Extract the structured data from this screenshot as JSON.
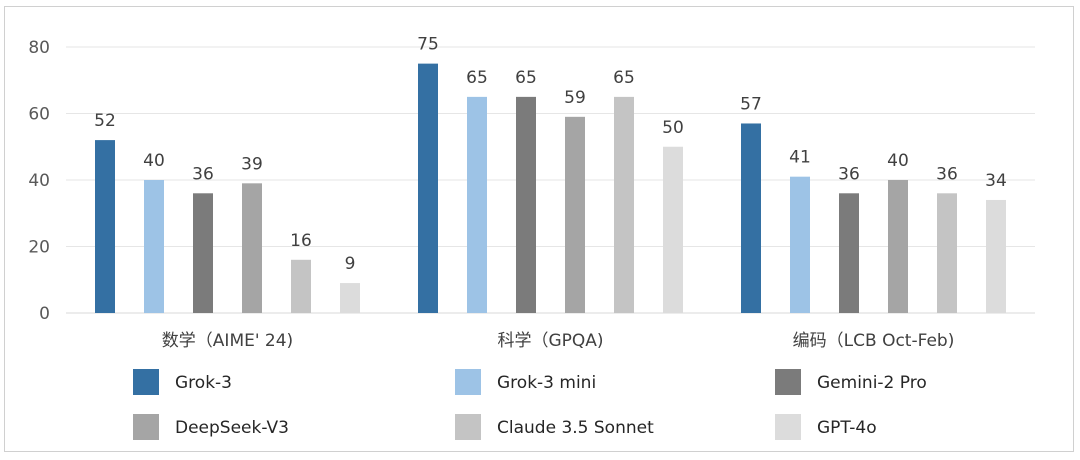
{
  "chart_data": {
    "type": "bar",
    "categories": [
      "数学（AIME' 24)",
      "科学（GPQA)",
      "编码（LCB Oct-Feb)"
    ],
    "series": [
      {
        "name": "Grok-3",
        "color": "#3470a3",
        "values": [
          52,
          75,
          57
        ]
      },
      {
        "name": "Grok-3 mini",
        "color": "#9dc3e6",
        "values": [
          40,
          65,
          41
        ]
      },
      {
        "name": "Gemini-2 Pro",
        "color": "#7b7b7b",
        "values": [
          36,
          65,
          36
        ]
      },
      {
        "name": "DeepSeek-V3",
        "color": "#a5a5a5",
        "values": [
          39,
          59,
          40
        ]
      },
      {
        "name": "Claude 3.5 Sonnet",
        "color": "#c4c4c4",
        "values": [
          16,
          65,
          36
        ]
      },
      {
        "name": "GPT-4o",
        "color": "#dcdcdc",
        "values": [
          9,
          50,
          34
        ]
      }
    ],
    "ylim": [
      0,
      80
    ],
    "yticks": [
      0,
      20,
      40,
      60,
      80
    ],
    "grid": true,
    "data_labels": true,
    "legend_position": "bottom"
  }
}
